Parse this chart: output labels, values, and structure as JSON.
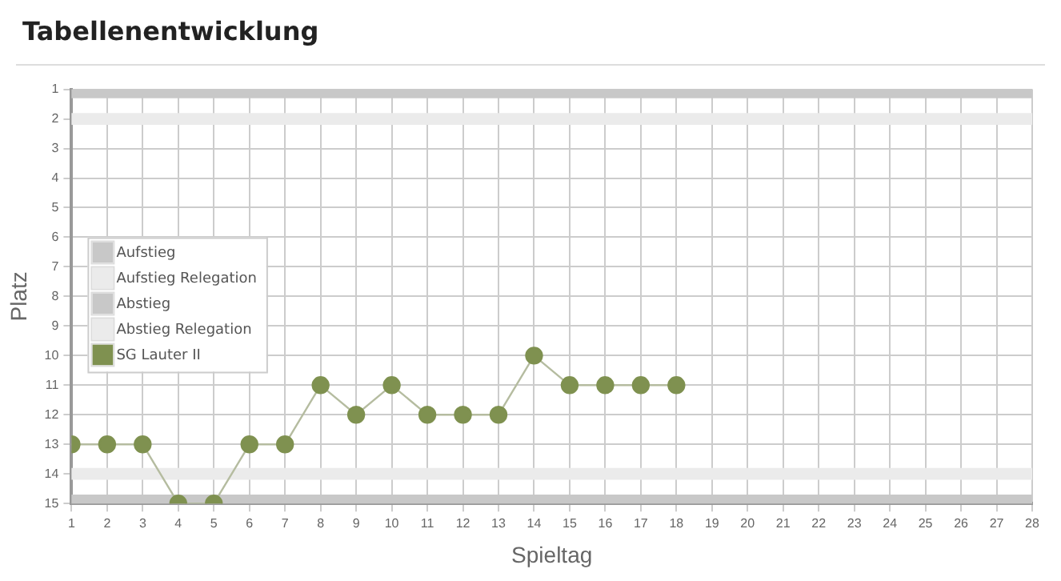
{
  "chart_data": {
    "type": "line",
    "title": "Tabellenentwicklung",
    "xlabel": "Spieltag",
    "ylabel": "Platz",
    "x": [
      1,
      2,
      3,
      4,
      5,
      6,
      7,
      8,
      9,
      10,
      11,
      12,
      13,
      14,
      15,
      16,
      17,
      18
    ],
    "series": [
      {
        "name": "SG Lauter II",
        "color": "#7f9150",
        "values": [
          13,
          13,
          13,
          15,
          15,
          13,
          13,
          11,
          12,
          11,
          12,
          12,
          12,
          10,
          11,
          11,
          11,
          11
        ]
      }
    ],
    "xlim": [
      1,
      28
    ],
    "xticks": [
      1,
      2,
      3,
      4,
      5,
      6,
      7,
      8,
      9,
      10,
      11,
      12,
      13,
      14,
      15,
      16,
      17,
      18,
      19,
      20,
      21,
      22,
      23,
      24,
      25,
      26,
      27,
      28
    ],
    "ylim": [
      15,
      1
    ],
    "yticks": [
      1,
      2,
      3,
      4,
      5,
      6,
      7,
      8,
      9,
      10,
      11,
      12,
      13,
      14,
      15
    ],
    "bands": [
      {
        "axis": "y",
        "from": 1,
        "to": 1.3,
        "label": "Aufstieg",
        "color": "#c8c8c8"
      },
      {
        "axis": "y",
        "from": 1.8,
        "to": 2.2,
        "label": "Aufstieg Relegation",
        "color": "#ebebeb"
      },
      {
        "axis": "y",
        "from": 14.7,
        "to": 15,
        "label": "Abstieg",
        "color": "#c8c8c8"
      },
      {
        "axis": "y",
        "from": 13.8,
        "to": 14.2,
        "label": "Abstieg Relegation",
        "color": "#ebebeb"
      }
    ],
    "grid": true,
    "legend": "left",
    "marker": "circle",
    "line_style": "solid"
  }
}
